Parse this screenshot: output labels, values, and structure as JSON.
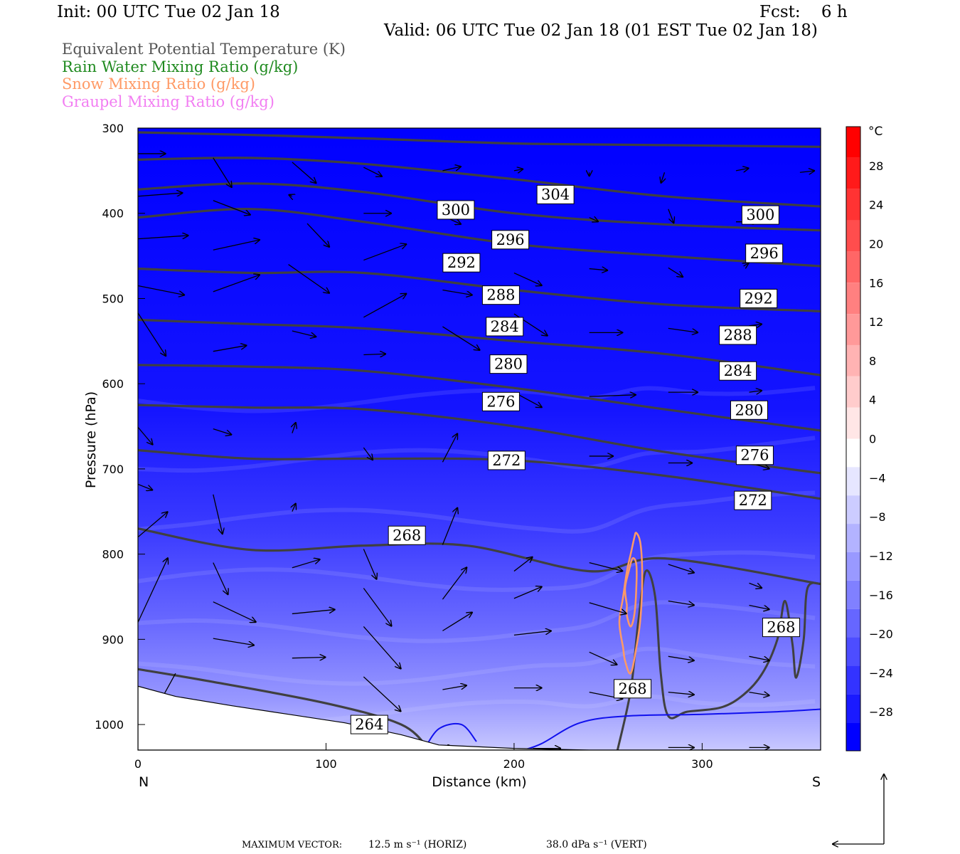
{
  "header": {
    "init": "Init: 00 UTC Tue 02 Jan 18",
    "fcst": "Fcst:    6 h",
    "valid": "Valid: 06 UTC Tue 02 Jan 18 (01 EST Tue 02 Jan 18)"
  },
  "legend": [
    {
      "label": "Equivalent Potential Temperature (K)",
      "color": "#555555"
    },
    {
      "label": "Rain Water Mixing Ratio (g/kg)",
      "color": "#1f8a1f"
    },
    {
      "label": "Snow Mixing Ratio (g/kg)",
      "color": "#ff9a66"
    },
    {
      "label": "Graupel Mixing Ratio (g/kg)",
      "color": "#f27ef2"
    }
  ],
  "footer": {
    "prefix": "MAXIMUM VECTOR:",
    "horiz": "12.5 m s⁻¹ (HORIZ)",
    "vert": "38.0 dPa s⁻¹ (VERT)"
  },
  "chart_data": {
    "type": "cross-section",
    "xlabel": "Distance (km)",
    "ylabel": "Pressure (hPa)",
    "x_ticks": [
      "0",
      "100",
      "200",
      "300"
    ],
    "x_tick_values": [
      0,
      100,
      200,
      300
    ],
    "xlim": [
      0,
      363
    ],
    "end_labels": {
      "left": "N",
      "right": "S"
    },
    "y_ticks": [
      "300",
      "400",
      "500",
      "600",
      "700",
      "800",
      "900",
      "1000"
    ],
    "y_tick_values": [
      300,
      400,
      500,
      600,
      700,
      800,
      900,
      1000
    ],
    "ylim": [
      300,
      1030
    ],
    "colorbar": {
      "unit": "°C",
      "labels": [
        "28",
        "24",
        "20",
        "16",
        "12",
        "8",
        "4",
        "0",
        "−4",
        "−8",
        "−12",
        "−16",
        "−20",
        "−24",
        "−28"
      ],
      "label_values": [
        28,
        24,
        20,
        16,
        12,
        8,
        4,
        0,
        -4,
        -8,
        -12,
        -16,
        -20,
        -24,
        -28
      ],
      "range": [
        -32,
        32
      ],
      "colors_warm": [
        "#ff0000",
        "#ff1a1a",
        "#ff3333",
        "#ff4d4d",
        "#ff6666",
        "#ff8080",
        "#ff9999",
        "#ffb3b3",
        "#ffcccc",
        "#ffe6e6"
      ],
      "colors_cold": [
        "#ffffff",
        "#e6e6ff",
        "#ccccff",
        "#b3b3ff",
        "#9999ff",
        "#8080ff",
        "#6666ff",
        "#4d4dff",
        "#3333ff",
        "#1a1aff",
        "#0000ff"
      ]
    },
    "theta_e_contours": [
      {
        "level": 304,
        "points": [
          [
            0,
            305
          ],
          [
            60,
            308
          ],
          [
            120,
            312
          ],
          [
            200,
            318
          ],
          [
            280,
            320
          ],
          [
            363,
            322
          ]
        ]
      },
      {
        "level": 300,
        "points": [
          [
            0,
            337
          ],
          [
            60,
            335
          ],
          [
            120,
            342
          ],
          [
            200,
            360
          ],
          [
            280,
            380
          ],
          [
            363,
            392
          ]
        ]
      },
      {
        "level": 296,
        "points": [
          [
            0,
            372
          ],
          [
            60,
            365
          ],
          [
            120,
            375
          ],
          [
            200,
            400
          ],
          [
            280,
            413
          ],
          [
            363,
            420
          ]
        ]
      },
      {
        "level": 292,
        "points": [
          [
            0,
            405
          ],
          [
            60,
            395
          ],
          [
            120,
            410
          ],
          [
            200,
            436
          ],
          [
            280,
            450
          ],
          [
            363,
            462
          ]
        ]
      },
      {
        "level": 288,
        "points": [
          [
            0,
            465
          ],
          [
            60,
            470
          ],
          [
            120,
            470
          ],
          [
            200,
            490
          ],
          [
            280,
            507
          ],
          [
            363,
            515
          ]
        ]
      },
      {
        "level": 284,
        "points": [
          [
            0,
            525
          ],
          [
            60,
            530
          ],
          [
            120,
            535
          ],
          [
            200,
            550
          ],
          [
            280,
            565
          ],
          [
            363,
            590
          ]
        ]
      },
      {
        "level": 280,
        "points": [
          [
            0,
            578
          ],
          [
            60,
            580
          ],
          [
            120,
            585
          ],
          [
            200,
            605
          ],
          [
            280,
            630
          ],
          [
            363,
            655
          ]
        ]
      },
      {
        "level": 276,
        "points": [
          [
            0,
            625
          ],
          [
            60,
            628
          ],
          [
            120,
            630
          ],
          [
            200,
            650
          ],
          [
            280,
            680
          ],
          [
            363,
            705
          ]
        ]
      },
      {
        "level": 272,
        "points": [
          [
            0,
            678
          ],
          [
            60,
            688
          ],
          [
            120,
            688
          ],
          [
            200,
            690
          ],
          [
            280,
            708
          ],
          [
            363,
            735
          ]
        ]
      },
      {
        "level": 268,
        "points": [
          [
            0,
            770
          ],
          [
            60,
            795
          ],
          [
            120,
            790
          ],
          [
            175,
            790
          ],
          [
            240,
            820
          ],
          [
            280,
            805
          ],
          [
            363,
            835
          ]
        ]
      },
      {
        "level": 264,
        "points": [
          [
            0,
            935
          ],
          [
            40,
            950
          ],
          [
            100,
            975
          ],
          [
            140,
            1000
          ],
          [
            155,
            1030
          ]
        ]
      }
    ],
    "theta_e_labels": [
      {
        "text": "304",
        "x": 222,
        "p": 378
      },
      {
        "text": "300",
        "x": 169,
        "p": 396
      },
      {
        "text": "300",
        "x": 331,
        "p": 402
      },
      {
        "text": "296",
        "x": 198,
        "p": 431
      },
      {
        "text": "296",
        "x": 333,
        "p": 447
      },
      {
        "text": "292",
        "x": 172,
        "p": 458
      },
      {
        "text": "292",
        "x": 330,
        "p": 500
      },
      {
        "text": "288",
        "x": 193,
        "p": 496
      },
      {
        "text": "288",
        "x": 319,
        "p": 543
      },
      {
        "text": "284",
        "x": 195,
        "p": 533
      },
      {
        "text": "284",
        "x": 319,
        "p": 585
      },
      {
        "text": "280",
        "x": 197,
        "p": 577
      },
      {
        "text": "280",
        "x": 325,
        "p": 631
      },
      {
        "text": "276",
        "x": 193,
        "p": 621
      },
      {
        "text": "276",
        "x": 328,
        "p": 684
      },
      {
        "text": "272",
        "x": 196,
        "p": 690
      },
      {
        "text": "272",
        "x": 327,
        "p": 737
      },
      {
        "text": "268",
        "x": 143,
        "p": 778
      },
      {
        "text": "268",
        "x": 342,
        "p": 886
      },
      {
        "text": "268",
        "x": 263,
        "p": 958
      },
      {
        "text": "264",
        "x": 123,
        "p": 1000
      }
    ],
    "snow_contours": [
      {
        "points": [
          [
            258,
            910
          ],
          [
            256,
            880
          ],
          [
            258,
            850
          ],
          [
            260,
            820
          ],
          [
            262,
            800
          ],
          [
            264,
            780
          ],
          [
            265,
            775
          ],
          [
            267,
            785
          ],
          [
            268,
            810
          ],
          [
            268,
            845
          ],
          [
            267,
            880
          ],
          [
            265,
            910
          ],
          [
            262,
            940
          ],
          [
            259,
            925
          ],
          [
            258,
            910
          ]
        ]
      },
      {
        "points": [
          [
            260,
            860
          ],
          [
            259,
            840
          ],
          [
            261,
            820
          ],
          [
            263,
            805
          ],
          [
            265,
            812
          ],
          [
            265,
            840
          ],
          [
            264,
            870
          ],
          [
            262,
            885
          ],
          [
            260,
            872
          ],
          [
            260,
            860
          ]
        ]
      }
    ],
    "terrain": [
      [
        0,
        955
      ],
      [
        20,
        967
      ],
      [
        50,
        978
      ],
      [
        80,
        988
      ],
      [
        110,
        998
      ],
      [
        140,
        1012
      ],
      [
        160,
        1024
      ],
      [
        200,
        1028
      ],
      [
        240,
        1030
      ],
      [
        363,
        1030
      ]
    ]
  }
}
